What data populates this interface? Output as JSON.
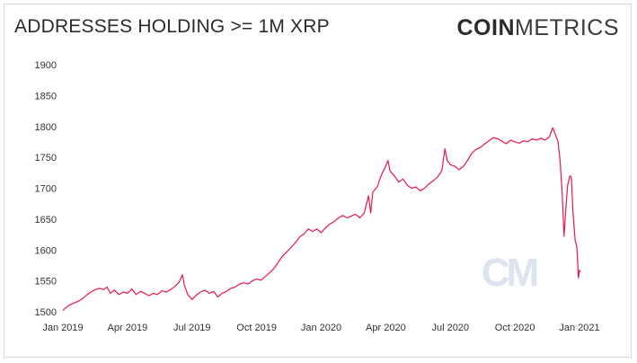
{
  "header": {
    "title": "ADDRESSES HOLDING >= 1M XRP",
    "brand_strong": "COIN",
    "brand_light": "METRICS"
  },
  "watermark": {
    "text": "CM"
  },
  "chart_data": {
    "type": "line",
    "title": "ADDRESSES HOLDING >= 1M XRP",
    "xlabel": "",
    "ylabel": "",
    "ylim": [
      1500,
      1900
    ],
    "yticks": [
      1500,
      1550,
      1600,
      1650,
      1700,
      1750,
      1800,
      1850,
      1900
    ],
    "xticks": [
      {
        "label": "Jan 2019",
        "t": 0
      },
      {
        "label": "Apr 2019",
        "t": 3
      },
      {
        "label": "Jul 2019",
        "t": 6
      },
      {
        "label": "Oct 2019",
        "t": 9
      },
      {
        "label": "Jan 2020",
        "t": 12
      },
      {
        "label": "Apr 2020",
        "t": 15
      },
      {
        "label": "Jul 2020",
        "t": 18
      },
      {
        "label": "Oct 2020",
        "t": 21
      },
      {
        "label": "Jan 2021",
        "t": 24
      }
    ],
    "xlim": [
      0,
      24
    ],
    "grid": false,
    "legend": "none",
    "line_color": "#e8174a",
    "series": [
      {
        "points": [
          [
            0.0,
            1502
          ],
          [
            0.15,
            1507
          ],
          [
            0.3,
            1511
          ],
          [
            0.5,
            1514
          ],
          [
            0.7,
            1517
          ],
          [
            0.9,
            1521
          ],
          [
            1.1,
            1527
          ],
          [
            1.3,
            1532
          ],
          [
            1.5,
            1536
          ],
          [
            1.7,
            1538
          ],
          [
            1.9,
            1536
          ],
          [
            2.05,
            1540
          ],
          [
            2.2,
            1530
          ],
          [
            2.4,
            1535
          ],
          [
            2.6,
            1528
          ],
          [
            2.8,
            1532
          ],
          [
            3.0,
            1530
          ],
          [
            3.2,
            1537
          ],
          [
            3.4,
            1528
          ],
          [
            3.6,
            1533
          ],
          [
            3.8,
            1530
          ],
          [
            4.0,
            1526
          ],
          [
            4.2,
            1530
          ],
          [
            4.4,
            1528
          ],
          [
            4.6,
            1534
          ],
          [
            4.8,
            1532
          ],
          [
            5.0,
            1536
          ],
          [
            5.2,
            1541
          ],
          [
            5.4,
            1548
          ],
          [
            5.55,
            1560
          ],
          [
            5.65,
            1542
          ],
          [
            5.8,
            1528
          ],
          [
            6.0,
            1520
          ],
          [
            6.2,
            1527
          ],
          [
            6.4,
            1532
          ],
          [
            6.6,
            1535
          ],
          [
            6.8,
            1530
          ],
          [
            7.0,
            1533
          ],
          [
            7.2,
            1524
          ],
          [
            7.4,
            1530
          ],
          [
            7.6,
            1533
          ],
          [
            7.8,
            1538
          ],
          [
            8.0,
            1540
          ],
          [
            8.2,
            1545
          ],
          [
            8.4,
            1547
          ],
          [
            8.6,
            1545
          ],
          [
            8.8,
            1550
          ],
          [
            9.0,
            1553
          ],
          [
            9.2,
            1551
          ],
          [
            9.4,
            1557
          ],
          [
            9.6,
            1563
          ],
          [
            9.8,
            1570
          ],
          [
            10.0,
            1580
          ],
          [
            10.2,
            1590
          ],
          [
            10.4,
            1597
          ],
          [
            10.6,
            1604
          ],
          [
            10.8,
            1612
          ],
          [
            11.0,
            1621
          ],
          [
            11.2,
            1626
          ],
          [
            11.4,
            1634
          ],
          [
            11.6,
            1630
          ],
          [
            11.8,
            1634
          ],
          [
            12.0,
            1628
          ],
          [
            12.2,
            1636
          ],
          [
            12.4,
            1642
          ],
          [
            12.6,
            1646
          ],
          [
            12.8,
            1652
          ],
          [
            13.0,
            1656
          ],
          [
            13.2,
            1652
          ],
          [
            13.4,
            1655
          ],
          [
            13.6,
            1658
          ],
          [
            13.8,
            1652
          ],
          [
            14.0,
            1660
          ],
          [
            14.2,
            1688
          ],
          [
            14.3,
            1660
          ],
          [
            14.4,
            1694
          ],
          [
            14.6,
            1702
          ],
          [
            14.8,
            1722
          ],
          [
            15.0,
            1736
          ],
          [
            15.1,
            1745
          ],
          [
            15.2,
            1728
          ],
          [
            15.4,
            1720
          ],
          [
            15.6,
            1710
          ],
          [
            15.8,
            1715
          ],
          [
            16.0,
            1705
          ],
          [
            16.2,
            1700
          ],
          [
            16.4,
            1702
          ],
          [
            16.6,
            1696
          ],
          [
            16.8,
            1700
          ],
          [
            17.0,
            1707
          ],
          [
            17.2,
            1712
          ],
          [
            17.4,
            1718
          ],
          [
            17.6,
            1728
          ],
          [
            17.75,
            1764
          ],
          [
            17.85,
            1745
          ],
          [
            18.0,
            1738
          ],
          [
            18.2,
            1736
          ],
          [
            18.4,
            1730
          ],
          [
            18.6,
            1735
          ],
          [
            18.8,
            1745
          ],
          [
            19.0,
            1757
          ],
          [
            19.2,
            1763
          ],
          [
            19.4,
            1766
          ],
          [
            19.6,
            1772
          ],
          [
            19.8,
            1777
          ],
          [
            20.0,
            1782
          ],
          [
            20.2,
            1780
          ],
          [
            20.4,
            1776
          ],
          [
            20.6,
            1772
          ],
          [
            20.8,
            1778
          ],
          [
            21.0,
            1775
          ],
          [
            21.2,
            1773
          ],
          [
            21.4,
            1777
          ],
          [
            21.6,
            1775
          ],
          [
            21.8,
            1780
          ],
          [
            22.0,
            1778
          ],
          [
            22.2,
            1781
          ],
          [
            22.4,
            1778
          ],
          [
            22.6,
            1783
          ],
          [
            22.75,
            1798
          ],
          [
            22.85,
            1790
          ],
          [
            23.0,
            1776
          ],
          [
            23.1,
            1745
          ],
          [
            23.2,
            1690
          ],
          [
            23.28,
            1622
          ],
          [
            23.36,
            1665
          ],
          [
            23.45,
            1705
          ],
          [
            23.55,
            1720
          ],
          [
            23.62,
            1718
          ],
          [
            23.7,
            1660
          ],
          [
            23.8,
            1615
          ],
          [
            23.88,
            1605
          ],
          [
            23.95,
            1555
          ],
          [
            24.0,
            1567
          ],
          [
            24.05,
            1565
          ]
        ]
      }
    ]
  }
}
